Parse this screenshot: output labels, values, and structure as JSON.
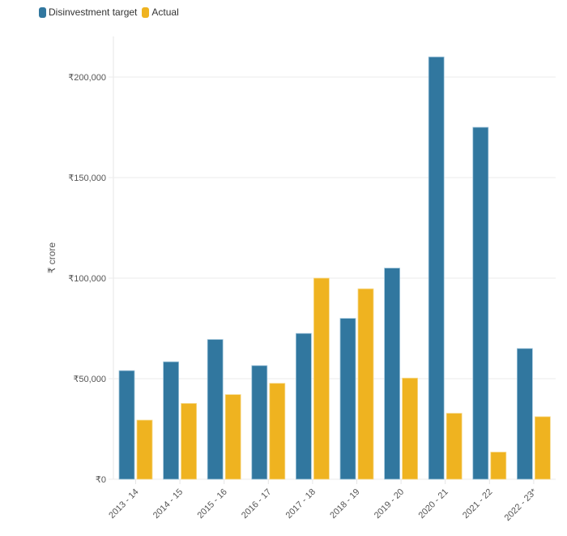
{
  "chart_data": {
    "type": "bar",
    "title": "",
    "xlabel": "",
    "ylabel": "₹ crore",
    "ylim": [
      0,
      220000
    ],
    "yticks": [
      0,
      50000,
      100000,
      150000,
      200000
    ],
    "ytick_labels": [
      "₹0",
      "₹50,000",
      "₹100,000",
      "₹150,000",
      "₹200,000"
    ],
    "grid": true,
    "legend_position": "top-left",
    "categories": [
      "2013 - 14",
      "2014 - 15",
      "2015 - 16",
      "2016 - 17",
      "2017 - 18",
      "2018 - 19",
      "2019 - 20",
      "2020 - 21",
      "2021 - 22",
      "2022 - 23*"
    ],
    "series": [
      {
        "name": "Disinvestment target",
        "color": "#31779f",
        "values": [
          54000,
          58400,
          69500,
          56500,
          72500,
          80000,
          105000,
          210000,
          175000,
          65000
        ]
      },
      {
        "name": "Actual",
        "color": "#efb320",
        "values": [
          29400,
          37700,
          42100,
          47700,
          100000,
          94700,
          50300,
          32800,
          13500,
          31100
        ]
      }
    ]
  }
}
